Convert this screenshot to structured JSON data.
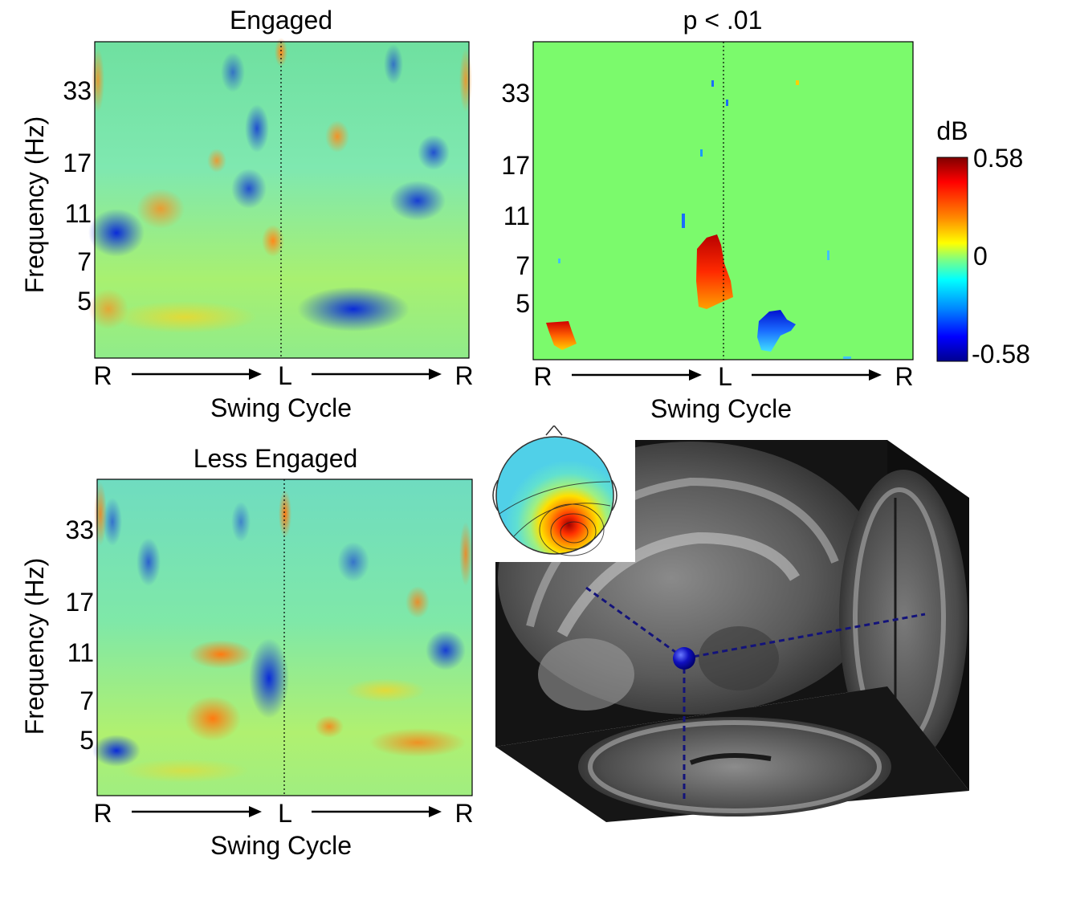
{
  "chart_data": [
    {
      "type": "heatmap",
      "title": "Engaged",
      "ylabel": "Frequency (Hz)",
      "xlabel": "Swing Cycle",
      "yticks": [
        "33",
        "17",
        "11",
        "7",
        "5"
      ],
      "xticks": [
        "R",
        "L",
        "R"
      ],
      "clim": [
        -0.58,
        0.58
      ]
    },
    {
      "type": "heatmap",
      "title": "p < .01",
      "ylabel": "",
      "xlabel": "Swing Cycle",
      "yticks": [
        "33",
        "17",
        "11",
        "7",
        "5"
      ],
      "xticks": [
        "R",
        "L",
        "R"
      ],
      "clim": [
        -0.58,
        0.58
      ]
    },
    {
      "type": "heatmap",
      "title": "Less Engaged",
      "ylabel": "Frequency (Hz)",
      "xlabel": "Swing Cycle",
      "yticks": [
        "33",
        "17",
        "11",
        "7",
        "5"
      ],
      "xticks": [
        "R",
        "L",
        "R"
      ],
      "clim": [
        -0.58,
        0.58
      ]
    }
  ],
  "colorbar": {
    "label": "dB",
    "max_label": "0.58",
    "mid_label": "0",
    "min_label": "-0.58",
    "stops": [
      "#7f0000",
      "#ff0000",
      "#ff8c00",
      "#ffff00",
      "#80ff80",
      "#00ffff",
      "#0080ff",
      "#0000ff",
      "#00008f"
    ]
  },
  "colors": {
    "ns_green": "#7bfa6c",
    "arrow": "#000000",
    "dipole": "#1010c0"
  },
  "brain_panel": {
    "topomap": "scalp-topography",
    "dipole": "dipole-marker"
  }
}
